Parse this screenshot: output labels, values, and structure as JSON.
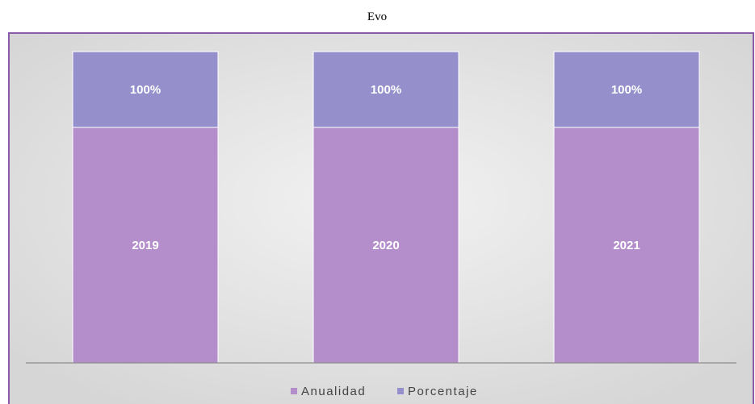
{
  "title": "Evo",
  "columns": [
    {
      "bottom_label": "2019",
      "top_label": "100%"
    },
    {
      "bottom_label": "2020",
      "top_label": "100%"
    },
    {
      "bottom_label": "2021",
      "top_label": "100%"
    }
  ],
  "legend": [
    "Anualidad",
    "Porcentaje"
  ]
}
